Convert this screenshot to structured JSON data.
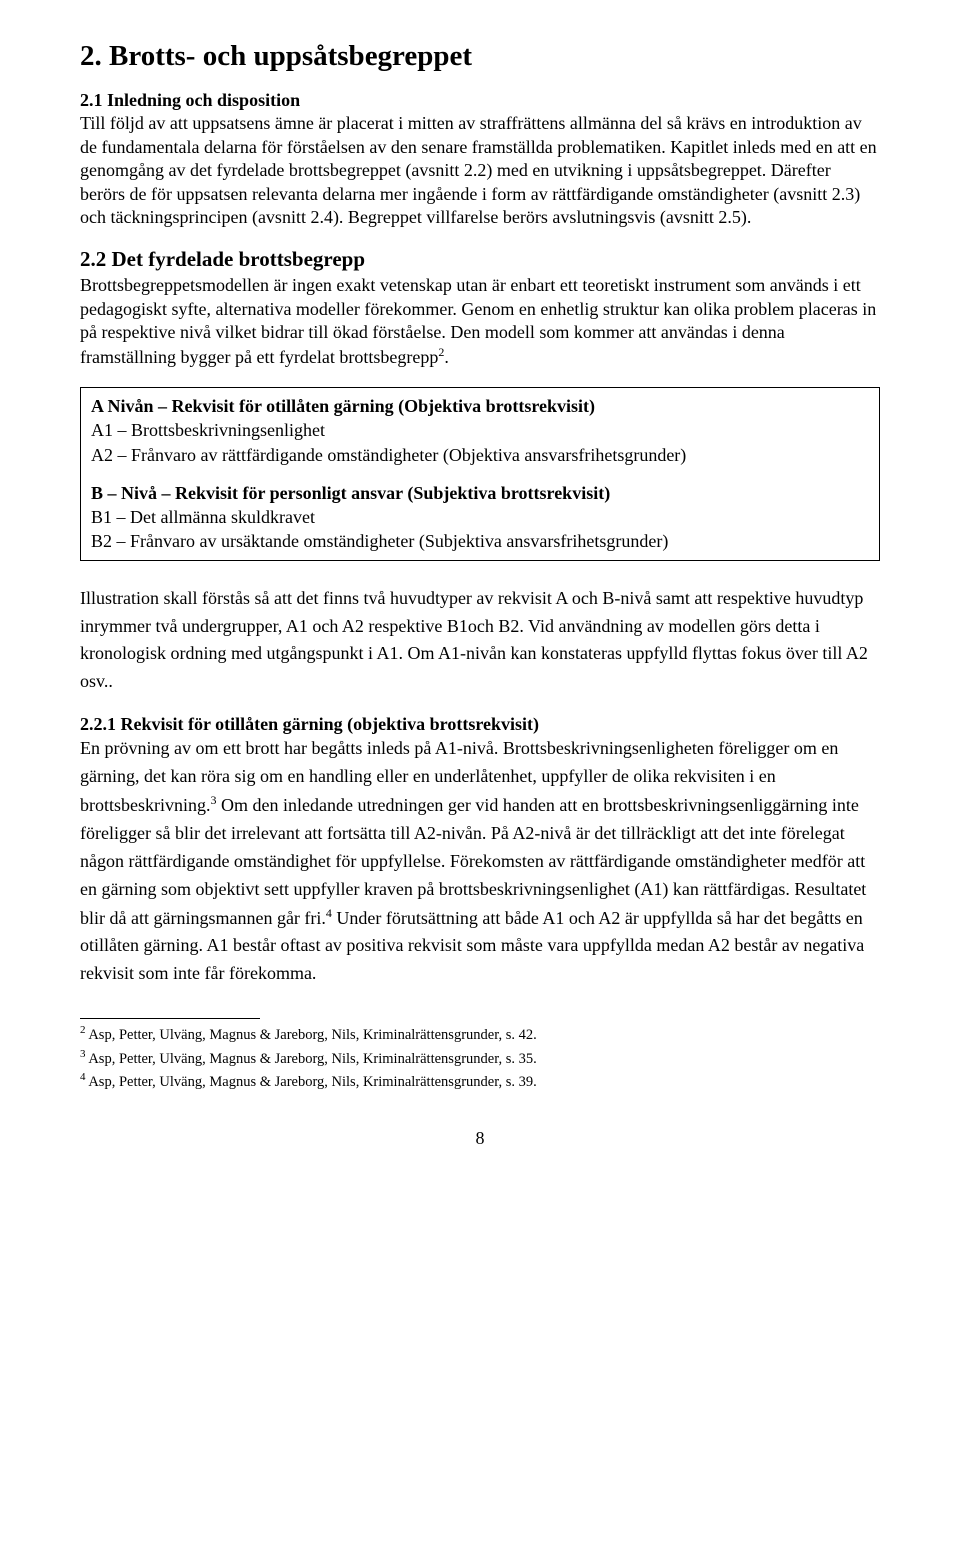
{
  "heading1": "2. Brotts- och uppsåtsbegreppet",
  "section21": {
    "run_title": "2.1 Inledning och disposition",
    "body": "Till följd av att uppsatsens ämne är placerat i mitten av straffrättens allmänna del så krävs en introduktion av de fundamentala delarna för förståelsen av den senare framställda problematiken. Kapitlet inleds med en att en genomgång av det fyrdelade brottsbegreppet (avsnitt 2.2) med en utvikning i uppsåtsbegreppet. Därefter berörs de för uppsatsen relevanta delarna mer ingående i form av rättfärdigande omständigheter (avsnitt 2.3) och täckningsprincipen (avsnitt 2.4). Begreppet villfarelse berörs avslutningsvis (avsnitt 2.5)."
  },
  "section22": {
    "title": "2.2 Det fyrdelade brottsbegrepp",
    "body_pre_sup": "Brottsbegreppetsmodellen är ingen exakt vetenskap utan är enbart ett teoretiskt instrument som används i ett pedagogiskt syfte, alternativa modeller förekommer. Genom en enhetlig struktur kan olika problem placeras in på respektive nivå vilket bidrar till ökad förståelse. Den modell som kommer att användas i denna framställning bygger på ett fyrdelat brottsbegrepp",
    "body_sup": "2",
    "body_post_sup": "."
  },
  "box": {
    "groupA": {
      "title": "A Nivån – Rekvisit för otillåten gärning (Objektiva brottsrekvisit)",
      "l1": "A1 – Brottsbeskrivningsenlighet",
      "l2": "A2 – Frånvaro av rättfärdigande omständigheter (Objektiva ansvarsfrihetsgrunder)"
    },
    "groupB": {
      "title": "B – Nivå – Rekvisit för personligt ansvar (Subjektiva brottsrekvisit)",
      "l1": "B1 – Det allmänna skuldkravet",
      "l2": "B2 – Frånvaro av ursäktande omständigheter (Subjektiva ansvarsfrihetsgrunder)"
    }
  },
  "illus_para": "Illustration skall förstås så att det finns två huvudtyper av rekvisit A och B-nivå samt att respektive huvudtyp inrymmer två undergrupper, A1 och A2 respektive B1och B2. Vid användning av modellen görs detta i kronologisk ordning med utgångspunkt i A1. Om A1-nivån kan konstateras uppfylld flyttas fokus över till A2 osv..",
  "section221": {
    "title": "2.2.1 Rekvisit för otillåten gärning (objektiva brottsrekvisit)",
    "t1": "En prövning av om ett brott har begåtts inleds på A1-nivå. Brottsbeskrivningsenligheten föreligger om en gärning, det kan röra sig om en handling eller en underlåtenhet, uppfyller de olika rekvisiten i en brottsbeskrivning.",
    "s1": "3",
    "t2": " Om den inledande utredningen ger vid handen att en brottsbeskrivningsenliggärning inte föreligger så blir det irrelevant att fortsätta till A2-nivån. På A2-nivå är det tillräckligt att det inte förelegat någon rättfärdigande omständighet för uppfyllelse. Förekomsten av rättfärdigande omständigheter medför att en gärning som objektivt sett uppfyller kraven på brottsbeskrivningsenlighet (A1) kan rättfärdigas. Resultatet blir då att gärningsmannen går fri.",
    "s2": "4",
    "t3": " Under förutsättning att både A1 och A2 är uppfyllda så har det begåtts en otillåten gärning. A1 består oftast av positiva rekvisit som måste vara uppfyllda medan A2 består av negativa rekvisit som inte får förekomma."
  },
  "footnotes": {
    "n2": {
      "num": "2",
      "text": " Asp, Petter, Ulväng, Magnus & Jareborg, Nils, Kriminalrättensgrunder, s. 42."
    },
    "n3": {
      "num": "3",
      "text": " Asp, Petter, Ulväng, Magnus & Jareborg, Nils, Kriminalrättensgrunder, s. 35."
    },
    "n4": {
      "num": "4",
      "text": " Asp, Petter, Ulväng, Magnus & Jareborg, Nils, Kriminalrättensgrunder, s. 39."
    }
  },
  "page_number": "8"
}
